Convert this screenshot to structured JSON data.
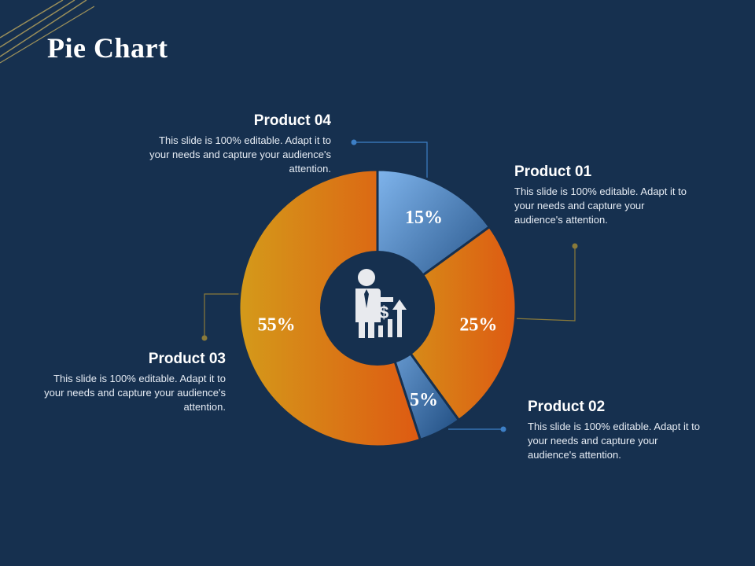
{
  "slide": {
    "title": "Pie Chart"
  },
  "colors": {
    "background": "#16304f",
    "blue_light": "#7fb4ec",
    "blue_dark": "#1f4c80",
    "orange_light": "#d49a1a",
    "orange_dark": "#de5a12",
    "leader_blue": "#3d7fc6",
    "leader_gold": "#8a7a3a"
  },
  "center_icon": "businessman-growth-icon",
  "callouts": [
    {
      "id": "product-01",
      "title": "Product 01",
      "text": "This slide is 100% editable. Adapt it to your needs and capture your audience's attention."
    },
    {
      "id": "product-02",
      "title": "Product 02",
      "text": "This slide is 100% editable. Adapt it to your needs and capture your audience's attention."
    },
    {
      "id": "product-03",
      "title": "Product 03",
      "text": "This slide is 100% editable. Adapt it to your needs and capture your audience's attention."
    },
    {
      "id": "product-04",
      "title": "Product 04",
      "text": "This slide is 100% editable. Adapt it to your needs and capture your audience's attention."
    }
  ],
  "chart_data": {
    "type": "pie",
    "variant": "donut",
    "title": "Pie Chart",
    "start": "top",
    "direction": "clockwise",
    "slices": [
      {
        "name": "Product 01",
        "value": 15,
        "label": "15%",
        "color": "blue"
      },
      {
        "name": "Product 02",
        "value": 25,
        "label": "25%",
        "color": "orange"
      },
      {
        "name": "Product 03",
        "value": 5,
        "label": "5%",
        "color": "blue"
      },
      {
        "name": "Product 04",
        "value": 55,
        "label": "55%",
        "color": "orange"
      }
    ]
  }
}
